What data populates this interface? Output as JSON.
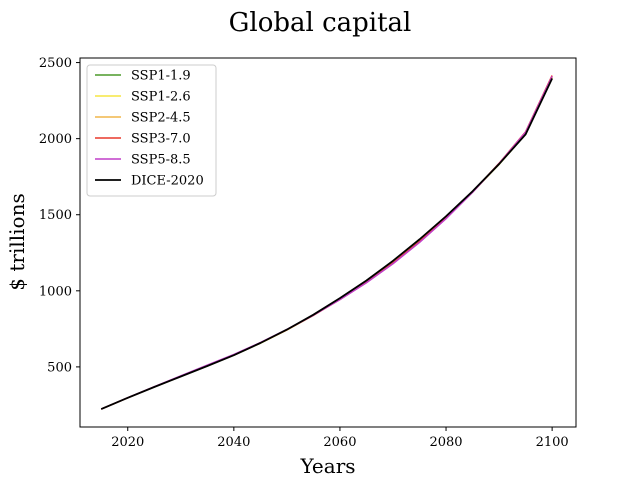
{
  "chart_data": {
    "type": "line",
    "title": "Global capital",
    "xlabel": "Years",
    "ylabel": "$ trillions",
    "xlim": [
      2011,
      2104.5
    ],
    "ylim": [
      105,
      2530
    ],
    "xticks": [
      2020,
      2040,
      2060,
      2080,
      2100
    ],
    "yticks": [
      500,
      1000,
      1500,
      2000,
      2500
    ],
    "grid": false,
    "legend_position": "top-left",
    "x": [
      2015,
      2020,
      2025,
      2030,
      2035,
      2040,
      2045,
      2050,
      2055,
      2060,
      2065,
      2070,
      2075,
      2080,
      2085,
      2090,
      2095,
      2100
    ],
    "series": [
      {
        "name": "SSP1-1.9",
        "color": "#4c9a2a",
        "values": [
          223,
          297,
          368,
          437,
          506,
          577,
          656,
          743,
          840,
          947,
          1062,
          1190,
          1330,
          1484,
          1650,
          1831,
          2030,
          2400
        ]
      },
      {
        "name": "SSP1-2.6",
        "color": "#f5e642",
        "values": [
          223,
          297,
          368,
          437,
          506,
          577,
          656,
          743,
          840,
          947,
          1062,
          1190,
          1330,
          1484,
          1650,
          1831,
          2030,
          2400
        ]
      },
      {
        "name": "SSP2-4.5",
        "color": "#f0b64a",
        "values": [
          223,
          297,
          368,
          438,
          508,
          578,
          657,
          744,
          840,
          945,
          1058,
          1185,
          1325,
          1480,
          1648,
          1833,
          2035,
          2405
        ]
      },
      {
        "name": "SSP3-7.0",
        "color": "#e8382b",
        "values": [
          223,
          297,
          369,
          439,
          509,
          579,
          658,
          744,
          839,
          943,
          1055,
          1182,
          1323,
          1479,
          1650,
          1838,
          2045,
          2415
        ]
      },
      {
        "name": "SSP5-8.5",
        "color": "#c13fc8",
        "values": [
          223,
          298,
          370,
          441,
          512,
          582,
          660,
          746,
          840,
          942,
          1053,
          1178,
          1318,
          1474,
          1647,
          1836,
          2042,
          2410
        ]
      },
      {
        "name": "DICE-2020",
        "color": "#000000",
        "values": [
          223,
          297,
          368,
          437,
          506,
          577,
          657,
          745,
          843,
          952,
          1068,
          1197,
          1338,
          1490,
          1654,
          1833,
          2028,
          2395
        ]
      }
    ]
  }
}
